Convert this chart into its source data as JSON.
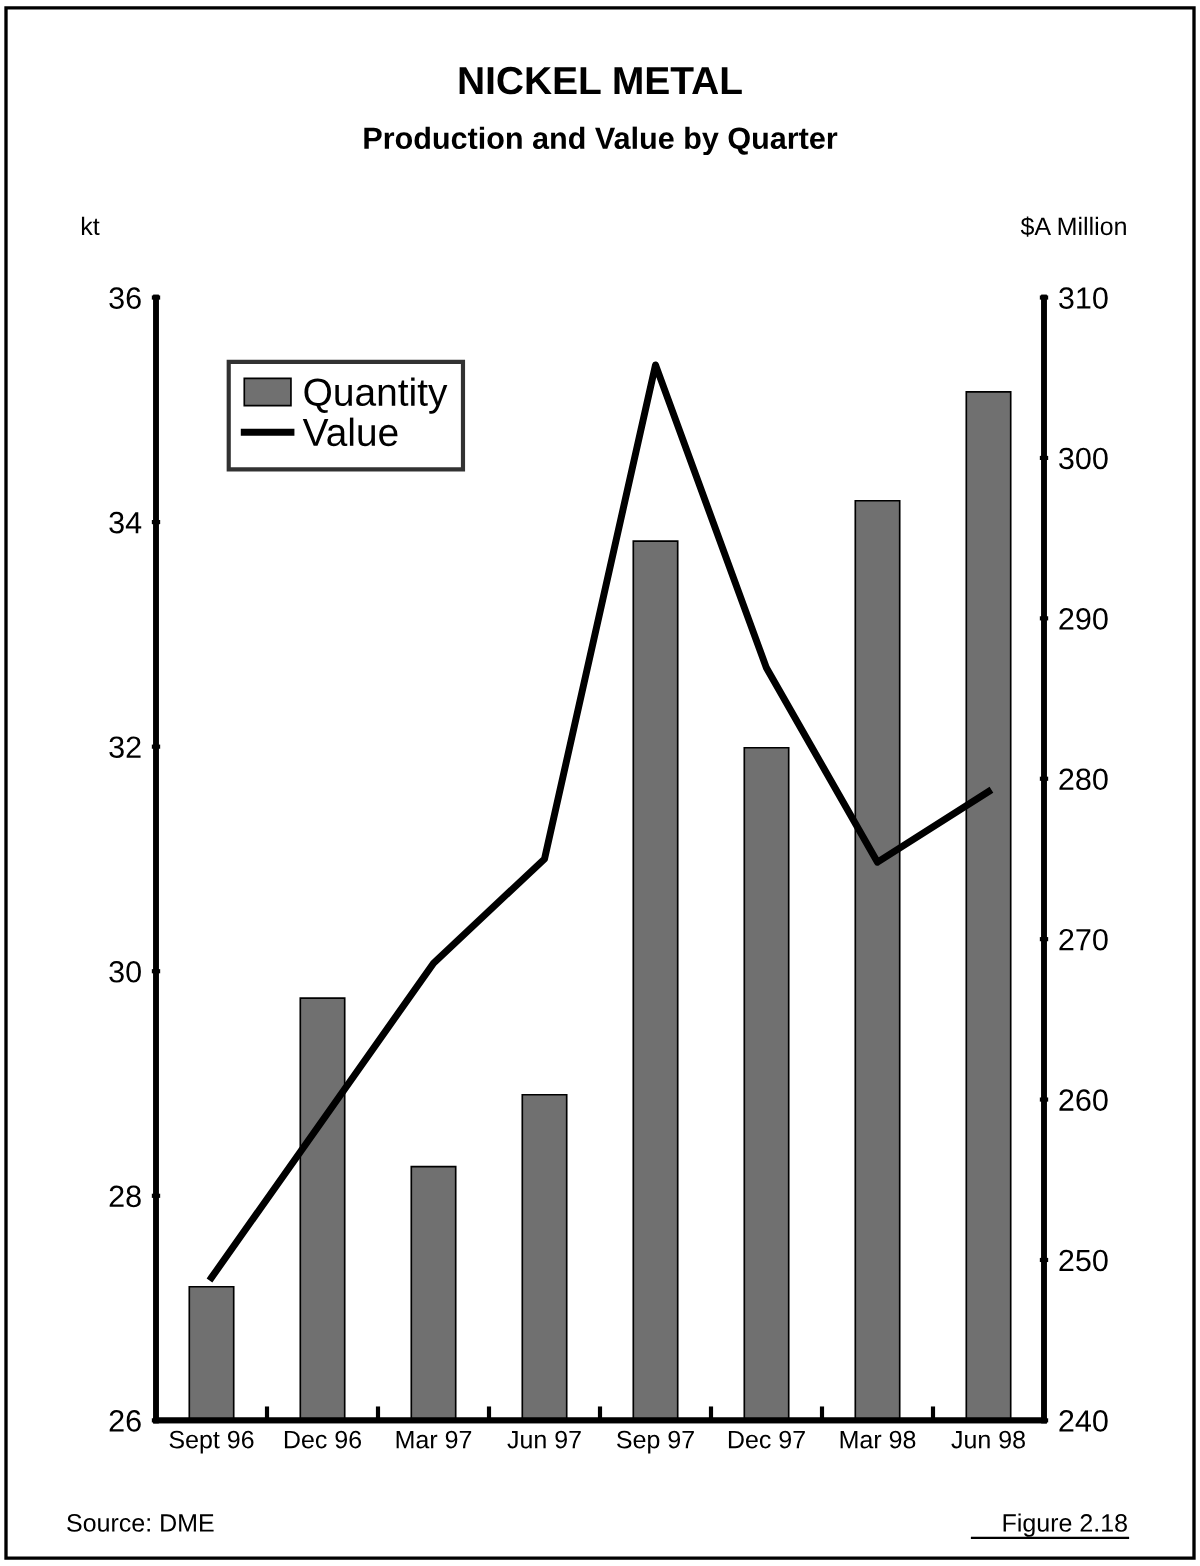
{
  "chart_data": {
    "type": "bar",
    "title": "NICKEL METAL",
    "subtitle": "Production and Value by Quarter",
    "ylabel": "kt",
    "y2label": "$A Million",
    "categories": [
      "Sept 96",
      "Dec 96",
      "Mar 97",
      "Jun 97",
      "Sep 97",
      "Dec 97",
      "Mar 98",
      "Jun 98"
    ],
    "series": [
      {
        "name": "Quantity",
        "color": "#707070",
        "values": [
          27.19,
          29.76,
          28.26,
          28.9,
          33.83,
          31.99,
          34.19,
          35.16
        ]
      },
      {
        "name": "Value",
        "type": "line",
        "axis": "y2",
        "color": "#000000",
        "values": [
          248.9,
          258.7,
          268.5,
          275.0,
          305.8,
          286.9,
          274.8,
          279.2
        ]
      }
    ],
    "ylim": [
      26,
      36
    ],
    "yticks": [
      26,
      28,
      30,
      32,
      34,
      36
    ],
    "y2lim": [
      240,
      310
    ],
    "y2ticks": [
      240,
      250,
      260,
      270,
      280,
      290,
      300,
      310
    ],
    "legend": "top left",
    "grid": false,
    "marker": "none",
    "line_style": "solid",
    "annotations": [
      "Source: DME",
      "Figure 2.18"
    ]
  }
}
